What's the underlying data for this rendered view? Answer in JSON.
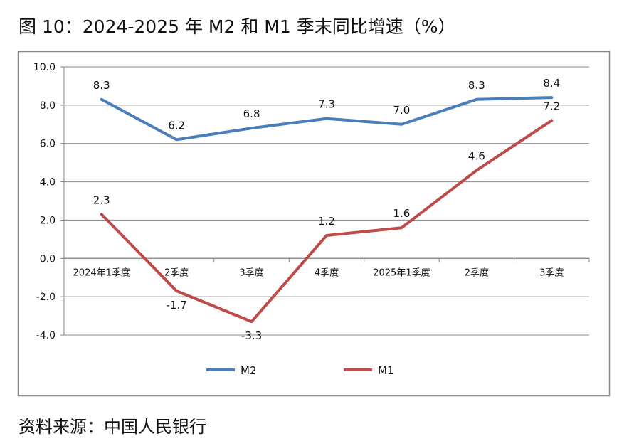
{
  "title": "图 10：2024-2025 年 M2 和 M1 季末同比增速（%）",
  "source": "资料来源：中国人民银行",
  "chart_data": {
    "type": "line",
    "title": "图 10：2024-2025 年 M2 和 M1 季末同比增速（%）",
    "categories": [
      "2024年1季度",
      "2季度",
      "3季度",
      "4季度",
      "2025年1季度",
      "2季度",
      "3季度"
    ],
    "series": [
      {
        "name": "M2",
        "values": [
          8.3,
          6.2,
          6.8,
          7.3,
          7.0,
          8.3,
          8.4
        ],
        "color": "#4a7ebb",
        "labels": [
          "8.3",
          "6.2",
          "6.8",
          "7.3",
          "7.0",
          "8.3",
          "8.4"
        ]
      },
      {
        "name": "M1",
        "values": [
          2.3,
          -1.7,
          -3.3,
          1.2,
          1.6,
          4.6,
          7.2
        ],
        "color": "#be4b48",
        "labels": [
          "2.3",
          "-1.7",
          "-3.3",
          "1.2",
          "1.6",
          "4.6",
          "7.2"
        ]
      }
    ],
    "ylim": [
      -4,
      10
    ],
    "yticks": [
      "-4.0",
      "-2.0",
      "0.0",
      "2.0",
      "4.0",
      "6.0",
      "8.0",
      "10.0"
    ],
    "grid": true,
    "legend": "bottom"
  }
}
